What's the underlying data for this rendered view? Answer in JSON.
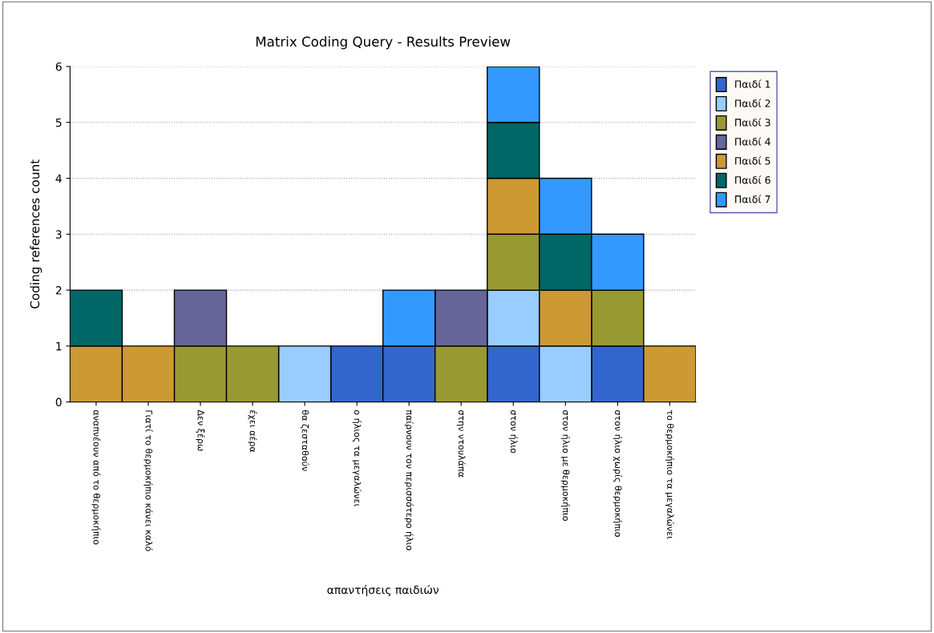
{
  "chart_data": {
    "type": "bar",
    "title": "Matrix Coding Query - Results Preview",
    "xlabel": "απαντήσεις παιδιών",
    "ylabel": "Coding references count",
    "categories": [
      "αναπνέουν από το θερμοκήπιο",
      "Γιατί το θερμοκήπιο κάνει καλό",
      "Δεν ξέρω",
      "έχει αέρα",
      "θα ζεσταθούν",
      "ο ήλιος τα μεγαλώνει",
      "παίρνουν τον περισσότερο ήλιο",
      "στην ντουλάπα",
      "στον ήλιο",
      "στον ήλιο με θερμοκήπιο",
      "στον ήλιο χωρίς θερμοκήπιο",
      "το θερμοκήπιο τα μεγαλώνει"
    ],
    "stacked": true,
    "series": [
      {
        "name": "Παιδί 1",
        "color": "#3366cc",
        "values": [
          null,
          null,
          null,
          null,
          null,
          1,
          1,
          null,
          1,
          null,
          1,
          null
        ]
      },
      {
        "name": "Παιδί 2",
        "color": "#99ccff",
        "values": [
          null,
          null,
          null,
          null,
          1,
          null,
          null,
          null,
          1,
          1,
          null,
          null
        ]
      },
      {
        "name": "Παιδί 3",
        "color": "#999933",
        "values": [
          null,
          null,
          1,
          1,
          null,
          null,
          null,
          1,
          1,
          null,
          1,
          null
        ]
      },
      {
        "name": "Παιδί 4",
        "color": "#666699",
        "values": [
          null,
          null,
          1,
          null,
          null,
          null,
          null,
          1,
          null,
          null,
          null,
          null
        ]
      },
      {
        "name": "Παιδί 5",
        "color": "#cc9933",
        "values": [
          1,
          1,
          null,
          null,
          null,
          null,
          null,
          null,
          1,
          1,
          null,
          1
        ]
      },
      {
        "name": "Παιδί 6",
        "color": "#006666",
        "values": [
          1,
          null,
          null,
          null,
          null,
          null,
          null,
          null,
          1,
          1,
          null,
          null
        ]
      },
      {
        "name": "Παιδί 7",
        "color": "#3399ff",
        "values": [
          null,
          null,
          null,
          null,
          null,
          null,
          1,
          null,
          1,
          1,
          1,
          null
        ]
      }
    ],
    "ylim": [
      0,
      6
    ],
    "yticks": [
      0,
      1,
      2,
      3,
      4,
      5,
      6
    ],
    "grid": "y",
    "legend": "right"
  }
}
